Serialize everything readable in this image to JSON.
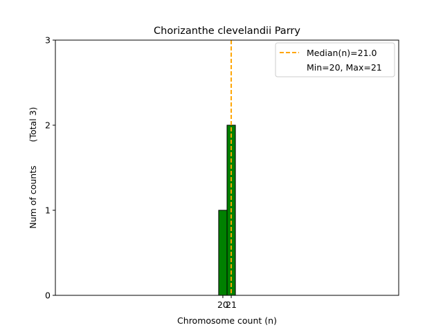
{
  "chart_data": {
    "type": "bar",
    "title": "Chorizanthe clevelandii Parry",
    "xlabel": "Chromosome count (n)",
    "ylabel": "Num of counts",
    "ylabel_total": "(Total 3)",
    "xlim": [
      0,
      41
    ],
    "ylim": [
      0,
      3
    ],
    "x_ticks": [
      20,
      21
    ],
    "y_ticks": [
      0,
      1,
      2,
      3
    ],
    "bars": [
      {
        "x": 20,
        "value": 1
      },
      {
        "x": 21,
        "value": 2
      }
    ],
    "bar_width": 1,
    "bar_color": "#008000",
    "median": 21.0,
    "median_color": "#FFA500",
    "legend": {
      "position": "top-right",
      "median_label": "Median(n)=21.0",
      "range_label": "Min=20, Max=21"
    },
    "grid": false
  }
}
